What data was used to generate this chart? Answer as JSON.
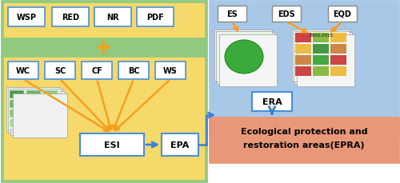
{
  "bg_color": "#ffffff",
  "left_panel_bg": "#8fca7e",
  "yellow_bg": "#f6d96b",
  "right_panel_bg": "#a8c8e8",
  "epra_box_bg": "#e89878",
  "box_bg": "#ffffff",
  "box_border_blue": "#4a90d9",
  "box_border_gray": "#888888",
  "top_labels": [
    "WSP",
    "RED",
    "NR",
    "PDF"
  ],
  "mid_labels": [
    "WC",
    "SC",
    "CF",
    "BC",
    "WS"
  ],
  "esi_label": "ESI",
  "epa_label": "EPA",
  "es_label": "ES",
  "eds_label": "EDS",
  "eqd_label": "EQD",
  "era_label": "ERA",
  "epra_line1": "Ecological protection and",
  "epra_line2": "restoration areas(EPRA)",
  "arrow_orange": "#f5a020",
  "arrow_blue": "#3a7fd5",
  "plus_color": "#f5a020",
  "font_size": 7,
  "label_font_size": 7.5
}
